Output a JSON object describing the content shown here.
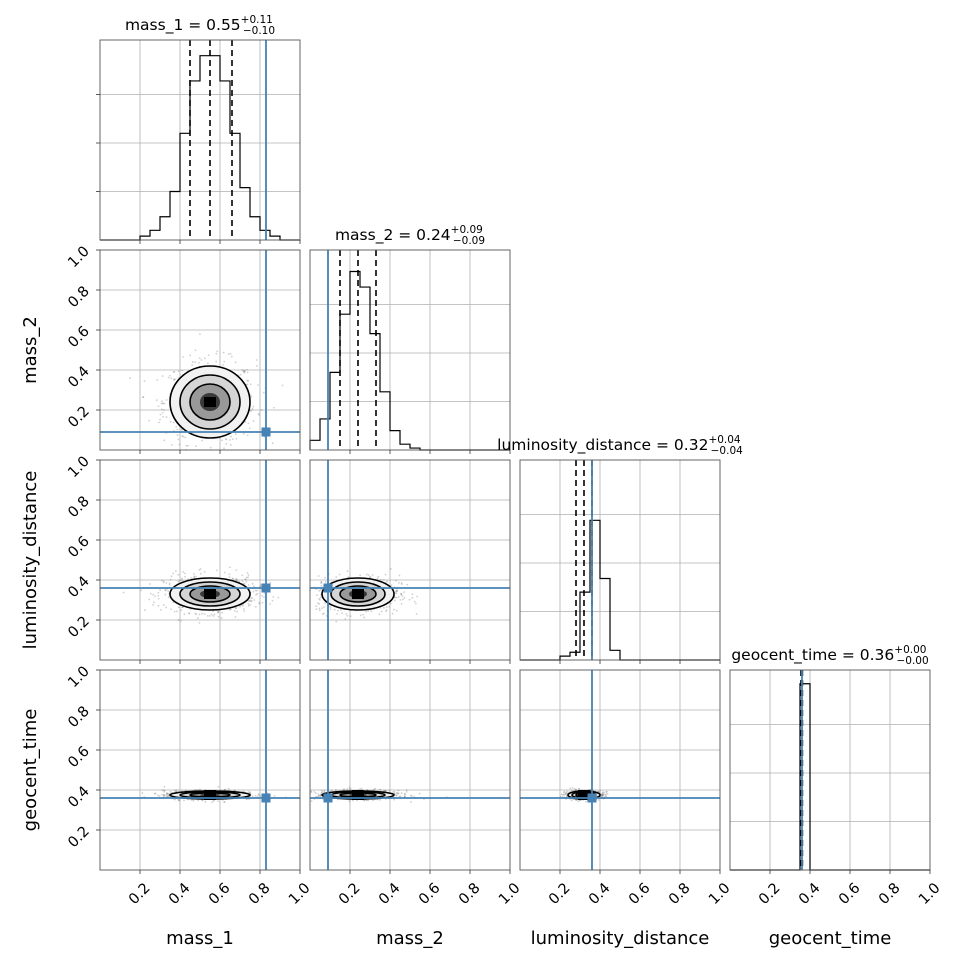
{
  "chart_data": {
    "type": "corner",
    "parameters": [
      "mass_1",
      "mass_2",
      "luminosity_distance",
      "geocent_time"
    ],
    "titles": [
      {
        "param": "mass_1",
        "median": "0.55",
        "plus": "+0.11",
        "minus": "−0.10"
      },
      {
        "param": "mass_2",
        "median": "0.24",
        "plus": "+0.09",
        "minus": "−0.09"
      },
      {
        "param": "luminosity_distance",
        "median": "0.32",
        "plus": "+0.04",
        "minus": "−0.04"
      },
      {
        "param": "geocent_time",
        "median": "0.36",
        "plus": "+0.00",
        "minus": "−0.00"
      }
    ],
    "tick_labels": [
      "0.2",
      "0.4",
      "0.6",
      "0.8",
      "1.0"
    ],
    "ticks": [
      0.2,
      0.4,
      0.6,
      0.8,
      1.0
    ],
    "range": [
      0,
      1
    ],
    "truths": [
      0.83,
      0.09,
      0.36,
      0.36
    ],
    "truth_color": "#4682b4",
    "quantiles": [
      [
        0.45,
        0.55,
        0.66
      ],
      [
        0.15,
        0.24,
        0.33
      ],
      [
        0.28,
        0.32,
        0.36
      ],
      [
        0.355,
        0.36,
        0.362
      ]
    ],
    "histograms": [
      {
        "bin_edges": [
          0.0,
          0.05,
          0.1,
          0.15,
          0.2,
          0.25,
          0.3,
          0.35,
          0.4,
          0.45,
          0.5,
          0.55,
          0.6,
          0.65,
          0.7,
          0.75,
          0.8,
          0.85,
          0.9,
          0.95,
          1.0
        ],
        "counts": [
          0,
          0,
          0,
          0,
          0.02,
          0.05,
          0.12,
          0.25,
          0.55,
          0.82,
          0.95,
          0.95,
          0.82,
          0.55,
          0.27,
          0.12,
          0.05,
          0.02,
          0,
          0
        ]
      },
      {
        "bin_edges": [
          0.0,
          0.05,
          0.1,
          0.15,
          0.2,
          0.25,
          0.3,
          0.35,
          0.4,
          0.45,
          0.5,
          0.55,
          0.6,
          0.65,
          0.7,
          0.75,
          0.8,
          0.85,
          0.9,
          0.95,
          1.0
        ],
        "counts": [
          0.05,
          0.16,
          0.4,
          0.7,
          0.92,
          0.84,
          0.6,
          0.3,
          0.1,
          0.03,
          0.01,
          0,
          0,
          0,
          0,
          0,
          0,
          0,
          0,
          0
        ]
      },
      {
        "bin_edges": [
          0.0,
          0.05,
          0.1,
          0.15,
          0.2,
          0.25,
          0.3,
          0.35,
          0.4,
          0.45,
          0.5,
          0.55,
          0.6,
          0.65,
          0.7,
          0.75,
          0.8,
          0.85,
          0.9,
          0.95,
          1.0
        ],
        "counts": [
          0,
          0,
          0,
          0,
          0.02,
          0.04,
          0.35,
          0.72,
          0.42,
          0.05,
          0,
          0,
          0,
          0,
          0,
          0,
          0,
          0,
          0,
          0
        ]
      },
      {
        "bin_edges": [
          0.0,
          0.05,
          0.1,
          0.15,
          0.2,
          0.25,
          0.3,
          0.35,
          0.4,
          0.45,
          0.5,
          0.55,
          0.6,
          0.65,
          0.7,
          0.75,
          0.8,
          0.85,
          0.9,
          0.95,
          1.0
        ],
        "counts": [
          0,
          0,
          0,
          0,
          0,
          0,
          0,
          0.96,
          0.0,
          0,
          0,
          0,
          0,
          0,
          0,
          0,
          0,
          0,
          0,
          0
        ]
      }
    ],
    "hist_ylim": [
      0,
      1
    ],
    "hist_yticks": [
      0.25,
      0.5,
      0.75
    ],
    "two_d": [
      {
        "x": "mass_1",
        "y": "mass_2",
        "mean": [
          0.55,
          0.24
        ],
        "sigma": [
          0.1,
          0.09
        ]
      },
      {
        "x": "mass_1",
        "y": "luminosity_distance",
        "mean": [
          0.55,
          0.33
        ],
        "sigma": [
          0.1,
          0.04
        ]
      },
      {
        "x": "mass_2",
        "y": "luminosity_distance",
        "mean": [
          0.24,
          0.33
        ],
        "sigma": [
          0.09,
          0.04
        ]
      },
      {
        "x": "mass_1",
        "y": "geocent_time",
        "mean": [
          0.55,
          0.375
        ],
        "sigma": [
          0.1,
          0.01
        ]
      },
      {
        "x": "mass_2",
        "y": "geocent_time",
        "mean": [
          0.24,
          0.375
        ],
        "sigma": [
          0.09,
          0.01
        ]
      },
      {
        "x": "luminosity_distance",
        "y": "geocent_time",
        "mean": [
          0.32,
          0.375
        ],
        "sigma": [
          0.04,
          0.01
        ]
      }
    ],
    "contour_levels_sigma": [
      0.5,
      1.0,
      1.5,
      2.0
    ],
    "grid": true
  }
}
